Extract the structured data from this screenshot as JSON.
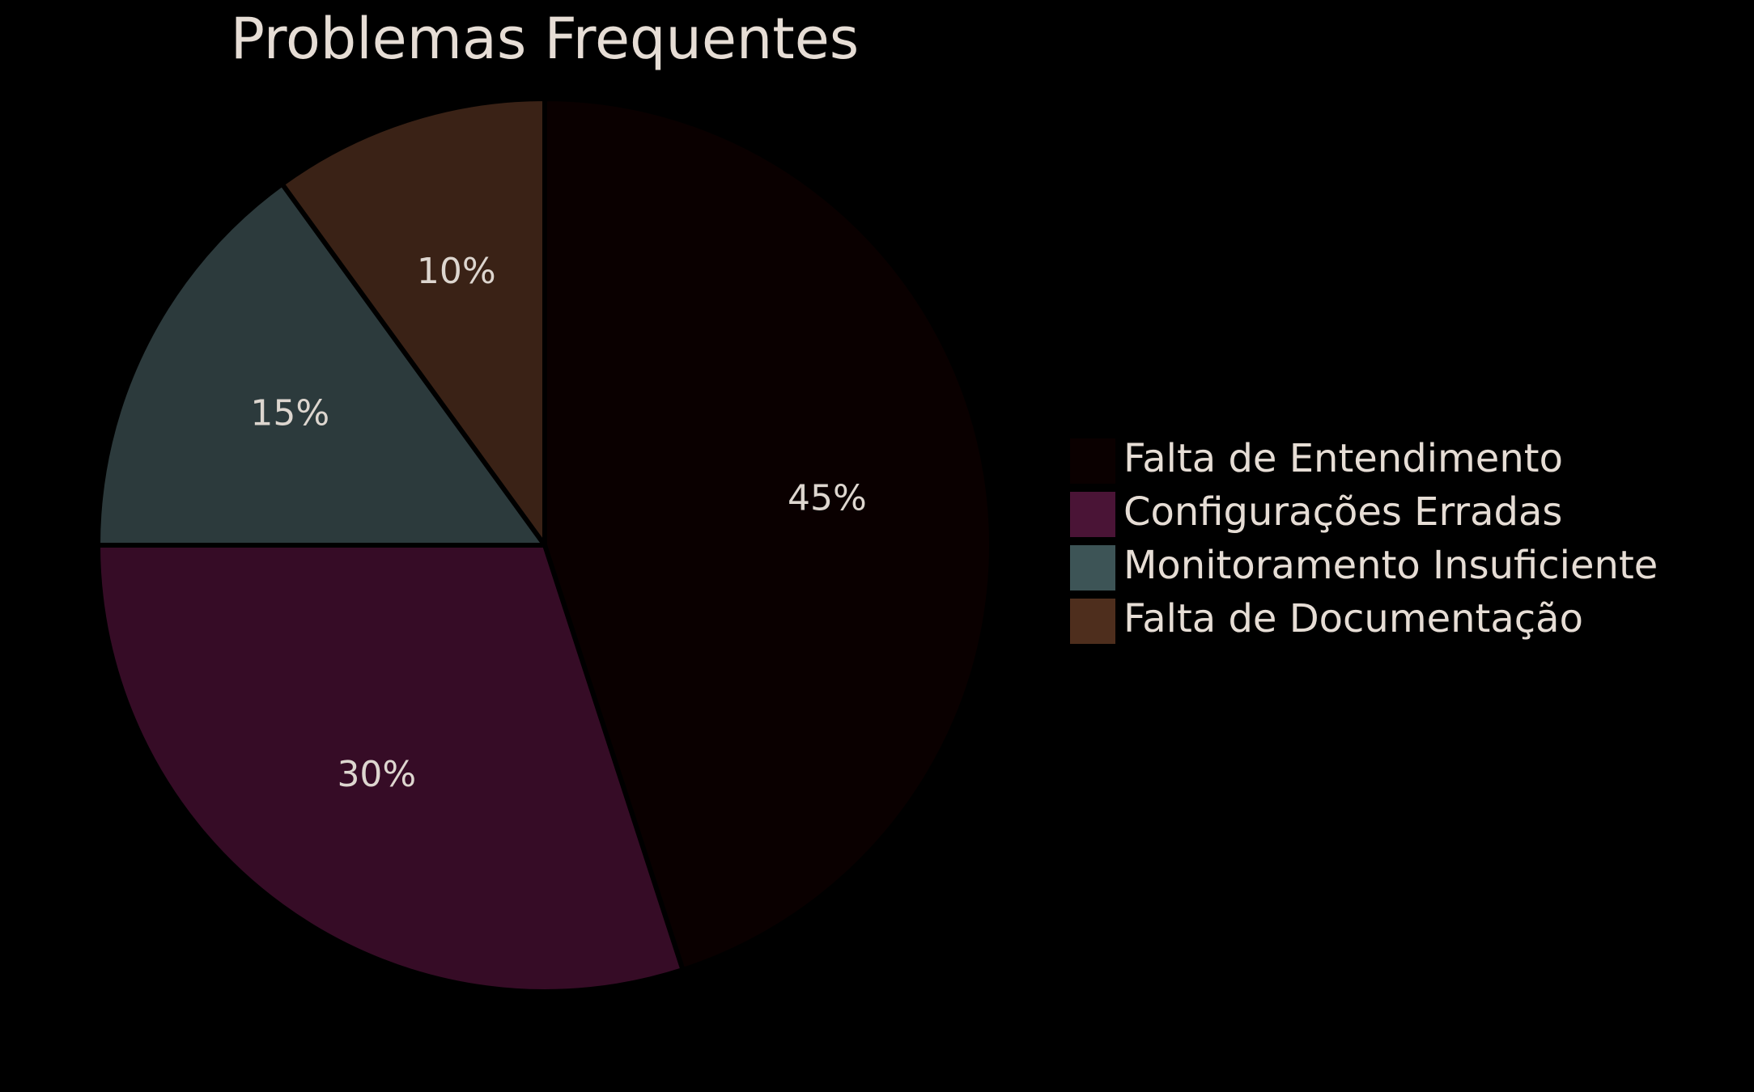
{
  "chart_data": {
    "type": "pie",
    "title": "Problemas Frequentes",
    "start_angle_deg": 90,
    "direction": "clockwise",
    "legend_position": "right",
    "slices": [
      {
        "label": "Falta de Entendimento",
        "value": 45,
        "display": "45%",
        "color": "#0a0000"
      },
      {
        "label": "Configurações Erradas",
        "value": 30,
        "display": "30%",
        "color": "#360c26"
      },
      {
        "label": "Monitoramento Insuficiente",
        "value": 15,
        "display": "15%",
        "color": "#2c3a3c"
      },
      {
        "label": "Falta de Documentação",
        "value": 10,
        "display": "10%",
        "color": "#3a2216"
      }
    ],
    "legend_colors": [
      "#0a0000",
      "#4a1436",
      "#3d5456",
      "#4e2e1d"
    ]
  }
}
